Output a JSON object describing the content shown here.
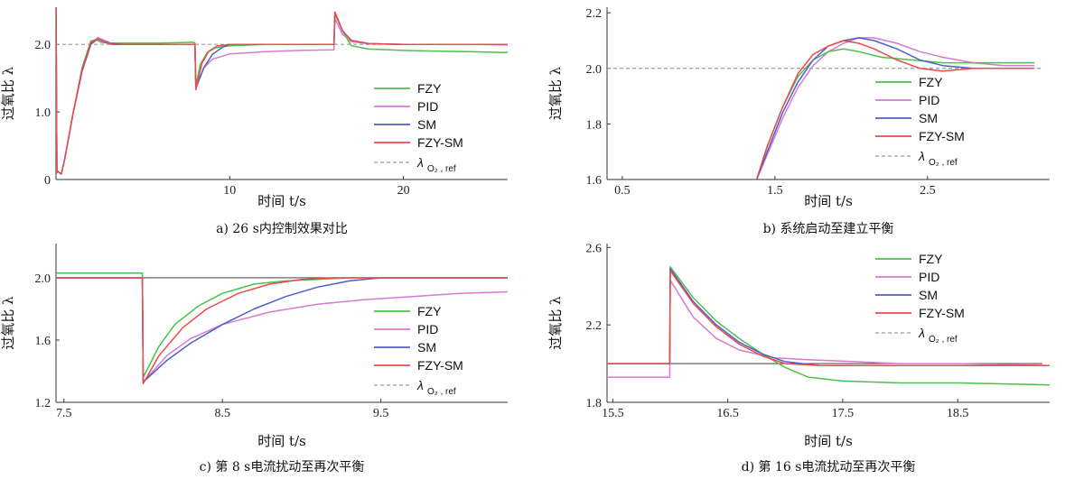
{
  "colors": {
    "FZY": "#4cc04c",
    "PID": "#d57ad5",
    "SM": "#4f5fc8",
    "FZY-SM": "#ef4a4a",
    "ref": "#9a9a9a"
  },
  "chart_data": [
    {
      "type": "line",
      "caption": "a)   26 s内控制效果对比",
      "xlabel": "时间 t/s",
      "ylabel": "过氧比 λ",
      "xlim": [
        0,
        26
      ],
      "ylim": [
        0,
        2.55
      ],
      "xticks": [
        10,
        20
      ],
      "yticks": [
        0,
        1.0,
        2.0
      ],
      "ytick_labels": [
        "0",
        "1.0",
        "2.0"
      ],
      "legend_placement": "bottom-right",
      "legend": [
        "FZY",
        "PID",
        "SM",
        "FZY-SM"
      ],
      "ref_label": "λ",
      "ref_sub": "O₂ , ref",
      "ref_value": 2.0,
      "series": [
        {
          "name": "FZY",
          "x": [
            0,
            0.05,
            0.1,
            0.3,
            0.5,
            1.0,
            1.5,
            2.0,
            2.3,
            2.6,
            3.0,
            4,
            6,
            7.9,
            8.0,
            8.05,
            8.3,
            8.7,
            9.2,
            10,
            12,
            14,
            15.9,
            16.0,
            16.05,
            16.5,
            17,
            18,
            20,
            22,
            24,
            26
          ],
          "y": [
            2.55,
            0.1,
            0.12,
            0.08,
            0.3,
            1.0,
            1.65,
            2.05,
            2.07,
            2.03,
            2.02,
            2.02,
            2.02,
            2.03,
            2.02,
            1.38,
            1.7,
            1.88,
            1.95,
            1.98,
            2.0,
            2.0,
            2.0,
            2.0,
            2.45,
            2.2,
            1.98,
            1.93,
            1.91,
            1.9,
            1.89,
            1.88
          ]
        },
        {
          "name": "PID",
          "x": [
            0,
            0.05,
            0.1,
            0.3,
            0.5,
            1.0,
            1.5,
            2.0,
            2.4,
            2.8,
            3.2,
            4,
            6,
            7.9,
            8.0,
            8.05,
            8.5,
            9,
            10,
            12,
            14,
            15.9,
            16.0,
            16.05,
            16.5,
            17,
            18,
            20,
            22,
            24,
            26
          ],
          "y": [
            2.55,
            0.1,
            0.12,
            0.08,
            0.3,
            1.0,
            1.6,
            2.0,
            2.1,
            2.06,
            2.01,
            2.0,
            2.0,
            2.0,
            2.0,
            1.35,
            1.65,
            1.78,
            1.86,
            1.89,
            1.91,
            1.92,
            1.92,
            2.38,
            2.15,
            2.04,
            2.01,
            2.0,
            2.0,
            2.0,
            1.99
          ]
        },
        {
          "name": "SM",
          "x": [
            0,
            0.05,
            0.1,
            0.3,
            0.5,
            1.0,
            1.5,
            2.0,
            2.4,
            2.8,
            3.2,
            4,
            6,
            7.9,
            8.0,
            8.05,
            8.5,
            9,
            9.6,
            10,
            12,
            14,
            15.9,
            16.0,
            16.05,
            16.5,
            17,
            18,
            20,
            22,
            24,
            26
          ],
          "y": [
            2.55,
            0.1,
            0.12,
            0.08,
            0.3,
            1.0,
            1.6,
            2.0,
            2.08,
            2.04,
            2.01,
            2.0,
            2.0,
            2.0,
            2.0,
            1.35,
            1.65,
            1.85,
            1.96,
            2.0,
            2.0,
            2.0,
            2.0,
            2.0,
            2.47,
            2.2,
            2.06,
            2.01,
            2.0,
            2.0,
            2.0,
            2.0
          ]
        },
        {
          "name": "FZY-SM",
          "x": [
            0,
            0.05,
            0.1,
            0.3,
            0.5,
            1.0,
            1.5,
            2.0,
            2.4,
            2.8,
            3.2,
            4,
            6,
            7.9,
            8.0,
            8.05,
            8.4,
            8.8,
            9.3,
            10,
            12,
            14,
            15.9,
            16.0,
            16.05,
            16.5,
            17,
            18,
            20,
            22,
            24,
            26
          ],
          "y": [
            2.55,
            0.1,
            0.12,
            0.08,
            0.3,
            1.0,
            1.62,
            2.03,
            2.08,
            2.03,
            2.0,
            2.0,
            2.0,
            2.0,
            2.0,
            1.33,
            1.72,
            1.9,
            1.98,
            2.0,
            2.0,
            2.0,
            2.0,
            2.0,
            2.48,
            2.2,
            2.06,
            2.01,
            2.0,
            2.0,
            2.0,
            2.0
          ]
        }
      ]
    },
    {
      "type": "line",
      "caption": "b)   系统启动至建立平衡",
      "xlabel": "时间 t/s",
      "ylabel": "过氧比 λ",
      "xlim": [
        0.4,
        3.3
      ],
      "ylim": [
        1.6,
        2.22
      ],
      "xticks": [
        0.5,
        1.5,
        2.5
      ],
      "yticks": [
        1.6,
        1.8,
        2.0,
        2.2
      ],
      "ytick_labels": [
        "1.6",
        "1.8",
        "2.0",
        "2.2"
      ],
      "legend_placement": "bottom-right",
      "legend": [
        "FZY",
        "PID",
        "SM",
        "FZY-SM"
      ],
      "ref_label": "λ",
      "ref_sub": "O₂ , ref",
      "ref_value": 2.0,
      "series": [
        {
          "name": "FZY",
          "x": [
            1.38,
            1.45,
            1.55,
            1.65,
            1.75,
            1.85,
            1.95,
            2.05,
            2.2,
            2.4,
            2.6,
            2.8,
            3.0,
            3.2
          ],
          "y": [
            1.6,
            1.72,
            1.86,
            1.97,
            2.03,
            2.06,
            2.07,
            2.06,
            2.04,
            2.03,
            2.02,
            2.02,
            2.02,
            2.02
          ]
        },
        {
          "name": "PID",
          "x": [
            1.38,
            1.45,
            1.55,
            1.65,
            1.75,
            1.85,
            1.95,
            2.05,
            2.15,
            2.3,
            2.45,
            2.6,
            2.8,
            3.0,
            3.2
          ],
          "y": [
            1.6,
            1.69,
            1.82,
            1.93,
            2.01,
            2.06,
            2.09,
            2.11,
            2.11,
            2.09,
            2.06,
            2.04,
            2.02,
            2.01,
            2.01
          ]
        },
        {
          "name": "SM",
          "x": [
            1.38,
            1.45,
            1.55,
            1.65,
            1.75,
            1.85,
            1.95,
            2.05,
            2.15,
            2.3,
            2.45,
            2.6,
            2.8,
            3.0,
            3.2
          ],
          "y": [
            1.6,
            1.7,
            1.84,
            1.95,
            2.03,
            2.08,
            2.1,
            2.11,
            2.1,
            2.07,
            2.03,
            2.01,
            2.0,
            2.0,
            2.0
          ]
        },
        {
          "name": "FZY-SM",
          "x": [
            1.38,
            1.45,
            1.55,
            1.65,
            1.75,
            1.85,
            1.95,
            2.05,
            2.15,
            2.3,
            2.45,
            2.6,
            2.8,
            3.0,
            3.2
          ],
          "y": [
            1.6,
            1.72,
            1.86,
            1.98,
            2.05,
            2.08,
            2.1,
            2.09,
            2.07,
            2.03,
            2.0,
            1.99,
            2.0,
            2.0,
            2.0
          ]
        }
      ]
    },
    {
      "type": "line",
      "caption": "c)   第 8 s电流扰动至再次平衡",
      "xlabel": "时间 t/s",
      "ylabel": "过氧比 λ",
      "xlim": [
        7.45,
        10.3
      ],
      "ylim": [
        1.2,
        2.22
      ],
      "xticks": [
        7.5,
        8.5,
        9.5
      ],
      "yticks": [
        1.2,
        1.6,
        2.0
      ],
      "ytick_labels": [
        "1.2",
        "1.6",
        "2.0"
      ],
      "legend_placement": "bottom-right",
      "legend": [
        "FZY",
        "PID",
        "SM",
        "FZY-SM"
      ],
      "ref_label": "λ",
      "ref_sub": "O₂ , ref",
      "ref_value": 2.0,
      "series": [
        {
          "name": "FZY",
          "x": [
            7.45,
            7.99,
            7.995,
            8.0,
            8.1,
            8.2,
            8.35,
            8.5,
            8.7,
            8.9,
            9.1,
            9.3,
            9.6,
            10.0,
            10.3
          ],
          "y": [
            2.03,
            2.03,
            2.03,
            1.36,
            1.56,
            1.7,
            1.82,
            1.9,
            1.96,
            1.98,
            1.99,
            2.0,
            2.0,
            2.0,
            2.0
          ]
        },
        {
          "name": "PID",
          "x": [
            7.45,
            7.99,
            7.995,
            8.0,
            8.15,
            8.3,
            8.5,
            8.8,
            9.1,
            9.4,
            9.7,
            10.0,
            10.3
          ],
          "y": [
            2.0,
            2.0,
            2.0,
            1.33,
            1.5,
            1.61,
            1.7,
            1.78,
            1.83,
            1.86,
            1.88,
            1.9,
            1.91
          ]
        },
        {
          "name": "SM",
          "x": [
            7.45,
            7.99,
            7.995,
            8.0,
            8.15,
            8.3,
            8.5,
            8.7,
            8.9,
            9.1,
            9.3,
            9.5,
            9.8,
            10.3
          ],
          "y": [
            2.0,
            2.0,
            2.0,
            1.33,
            1.47,
            1.58,
            1.7,
            1.8,
            1.88,
            1.94,
            1.98,
            2.0,
            2.0,
            2.0
          ]
        },
        {
          "name": "FZY-SM",
          "x": [
            7.45,
            7.99,
            7.995,
            8.0,
            8.1,
            8.25,
            8.4,
            8.6,
            8.8,
            9.0,
            9.2,
            9.5,
            9.9,
            10.3
          ],
          "y": [
            2.0,
            2.0,
            2.0,
            1.32,
            1.5,
            1.68,
            1.8,
            1.9,
            1.96,
            1.99,
            2.0,
            2.0,
            2.0,
            2.0
          ]
        }
      ]
    },
    {
      "type": "line",
      "caption": "d)   第 16 s电流扰动至再次平衡",
      "xlabel": "时间 t/s",
      "ylabel": "过氧比 λ",
      "xlim": [
        15.45,
        19.3
      ],
      "ylim": [
        1.8,
        2.62
      ],
      "xticks": [
        15.5,
        16.5,
        17.5,
        18.5
      ],
      "yticks": [
        1.8,
        2.2,
        2.6
      ],
      "ytick_labels": [
        "1.8",
        "2.2",
        "2.6"
      ],
      "legend_placement": "top-right",
      "legend": [
        "FZY",
        "PID",
        "SM",
        "FZY-SM"
      ],
      "ref_label": "λ",
      "ref_sub": "O₂ , ref",
      "ref_value": 2.0,
      "series": [
        {
          "name": "FZY",
          "x": [
            15.45,
            15.99,
            15.995,
            16.0,
            16.2,
            16.4,
            16.6,
            16.8,
            17.0,
            17.2,
            17.5,
            18.0,
            18.5,
            19.3
          ],
          "y": [
            2.0,
            2.0,
            2.0,
            2.5,
            2.34,
            2.22,
            2.13,
            2.05,
            1.98,
            1.93,
            1.91,
            1.9,
            1.9,
            1.89
          ]
        },
        {
          "name": "PID",
          "x": [
            15.45,
            15.99,
            15.995,
            16.0,
            16.2,
            16.4,
            16.6,
            16.9,
            17.2,
            17.6,
            18.0,
            18.5,
            19.3
          ],
          "y": [
            1.93,
            1.93,
            1.93,
            2.43,
            2.24,
            2.13,
            2.07,
            2.03,
            2.02,
            2.01,
            2.0,
            2.0,
            1.99
          ]
        },
        {
          "name": "SM",
          "x": [
            15.45,
            15.99,
            15.995,
            16.0,
            16.2,
            16.4,
            16.6,
            16.8,
            17.0,
            17.3,
            17.7,
            18.2,
            19.3
          ],
          "y": [
            2.0,
            2.0,
            2.0,
            2.49,
            2.32,
            2.2,
            2.11,
            2.05,
            2.01,
            1.99,
            1.99,
            1.99,
            1.99
          ]
        },
        {
          "name": "FZY-SM",
          "x": [
            15.45,
            15.99,
            15.995,
            16.0,
            16.2,
            16.4,
            16.6,
            16.8,
            17.0,
            17.3,
            17.7,
            18.2,
            19.3
          ],
          "y": [
            2.0,
            2.0,
            2.0,
            2.48,
            2.31,
            2.19,
            2.1,
            2.04,
            2.0,
            1.99,
            1.99,
            1.99,
            1.99
          ]
        }
      ]
    }
  ]
}
